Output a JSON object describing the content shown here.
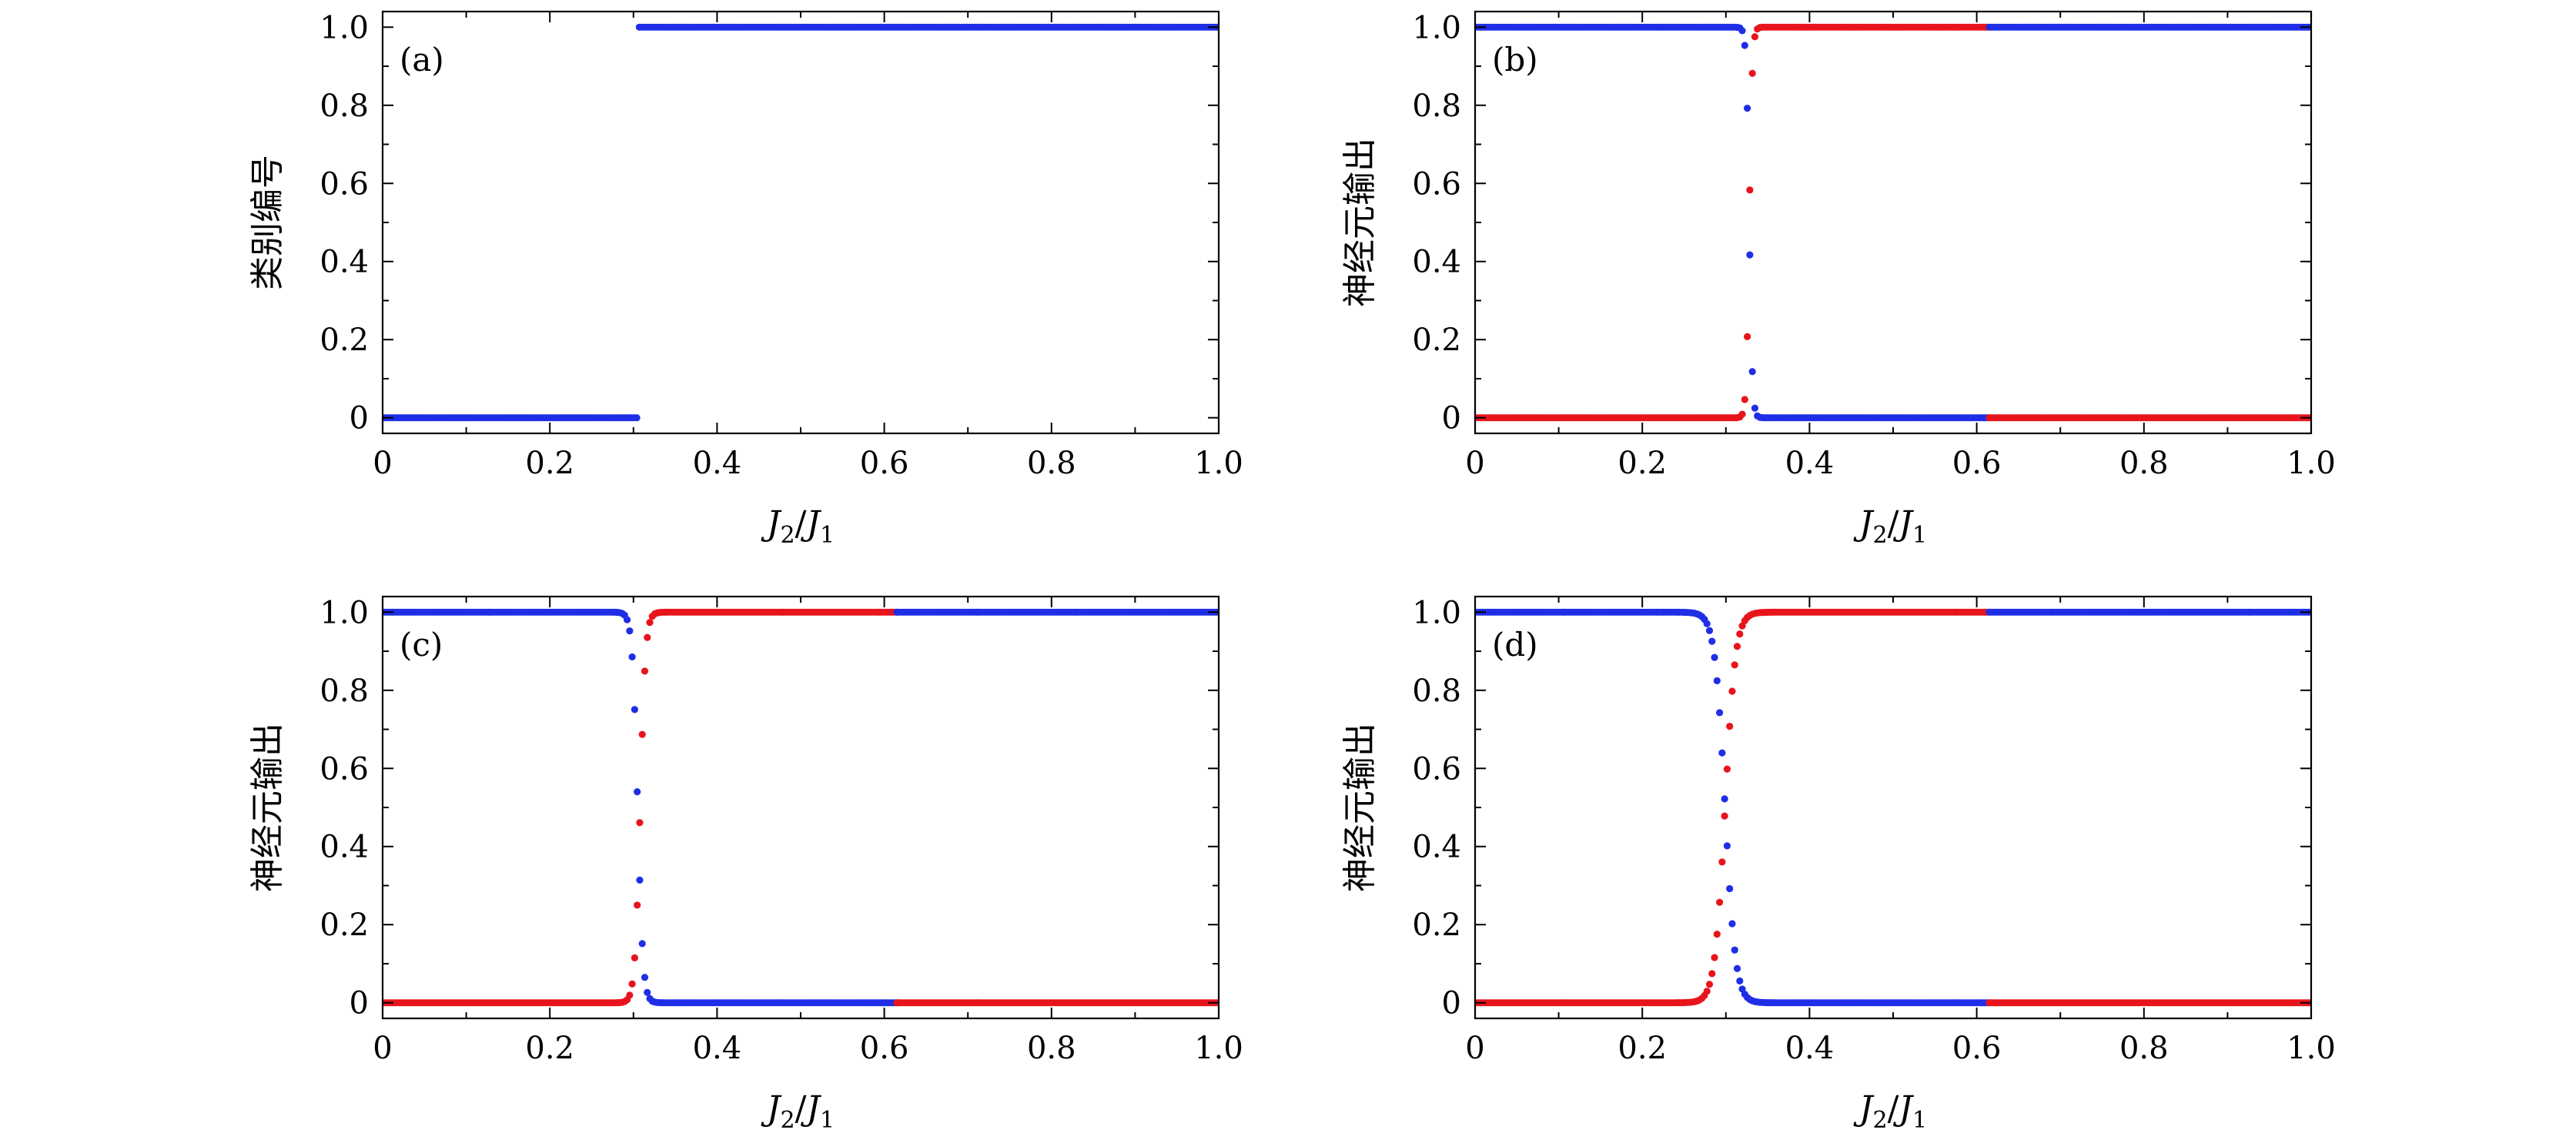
{
  "chart_data": [
    {
      "panel_label": "(a)",
      "type": "scatter",
      "xlabel": {
        "main": "J",
        "sub": "2",
        "sep": "/",
        "main2": "J",
        "sub2": "1"
      },
      "ylabel": "类别编号",
      "xlim": [
        0,
        1.0
      ],
      "ylim": [
        -0.04,
        1.04
      ],
      "xticks": [
        0,
        0.2,
        0.4,
        0.6,
        0.8,
        1.0
      ],
      "xtick_labels": [
        "0",
        "0.2",
        "0.4",
        "0.6",
        "0.8",
        "1.0"
      ],
      "yticks": [
        0,
        0.2,
        0.4,
        0.6,
        0.8,
        1.0
      ],
      "ytick_labels": [
        "0",
        "0.2",
        "0.4",
        "0.6",
        "0.8",
        "1.0"
      ],
      "series": [
        {
          "color": "#1f2ee6",
          "model": "step",
          "params": {
            "start": 0.0,
            "end": 1.0,
            "n": 330,
            "xc": 0.305,
            "low": 0,
            "high": 1
          }
        }
      ]
    },
    {
      "panel_label": "(b)",
      "type": "scatter",
      "xlabel": {
        "main": "J",
        "sub": "2",
        "sep": "/",
        "main2": "J",
        "sub2": "1"
      },
      "ylabel": "神经元输出",
      "xlim": [
        0,
        1.0
      ],
      "ylim": [
        -0.04,
        1.04
      ],
      "xticks": [
        0,
        0.2,
        0.4,
        0.6,
        0.8,
        1.0
      ],
      "xtick_labels": [
        "0",
        "0.2",
        "0.4",
        "0.6",
        "0.8",
        "1.0"
      ],
      "yticks": [
        0,
        0.2,
        0.4,
        0.6,
        0.8,
        1.0
      ],
      "ytick_labels": [
        "0",
        "0.2",
        "0.4",
        "0.6",
        "0.8",
        "1.0"
      ],
      "series": [
        {
          "color": "#1f2ee6",
          "model": "sigmoid",
          "params": {
            "start": 0.0,
            "end": 0.615,
            "n": 205,
            "x0": 0.328,
            "w": 0.0018,
            "dir": "down"
          }
        },
        {
          "color": "#e8141c",
          "model": "sigmoid",
          "params": {
            "start": 0.0,
            "end": 0.615,
            "n": 205,
            "x0": 0.328,
            "w": 0.0018,
            "dir": "up"
          }
        },
        {
          "color": "#1f2ee6",
          "model": "const",
          "params": {
            "start": 0.615,
            "end": 1.0,
            "n": 130,
            "y": 1
          }
        },
        {
          "color": "#e8141c",
          "model": "const",
          "params": {
            "start": 0.615,
            "end": 1.0,
            "n": 130,
            "y": 0
          }
        }
      ]
    },
    {
      "panel_label": "(c)",
      "type": "scatter",
      "xlabel": {
        "main": "J",
        "sub": "2",
        "sep": "/",
        "main2": "J",
        "sub2": "1"
      },
      "ylabel": "神经元输出",
      "xlim": [
        0,
        1.0
      ],
      "ylim": [
        -0.04,
        1.04
      ],
      "xticks": [
        0,
        0.2,
        0.4,
        0.6,
        0.8,
        1.0
      ],
      "xtick_labels": [
        "0",
        "0.2",
        "0.4",
        "0.6",
        "0.8",
        "1.0"
      ],
      "yticks": [
        0,
        0.2,
        0.4,
        0.6,
        0.8,
        1.0
      ],
      "ytick_labels": [
        "0",
        "0.2",
        "0.4",
        "0.6",
        "0.8",
        "1.0"
      ],
      "series": [
        {
          "color": "#1f2ee6",
          "model": "sigmoid",
          "params": {
            "start": 0.0,
            "end": 0.615,
            "n": 205,
            "x0": 0.305,
            "w": 0.0032,
            "dir": "down"
          }
        },
        {
          "color": "#e8141c",
          "model": "sigmoid",
          "params": {
            "start": 0.0,
            "end": 0.615,
            "n": 205,
            "x0": 0.308,
            "w": 0.0032,
            "dir": "up"
          }
        },
        {
          "color": "#e8141c",
          "model": "const",
          "params": {
            "start": 0.615,
            "end": 1.0,
            "n": 130,
            "y": 0
          }
        },
        {
          "color": "#1f2ee6",
          "model": "const",
          "params": {
            "start": 0.615,
            "end": 1.0,
            "n": 130,
            "y": 1
          }
        }
      ]
    },
    {
      "panel_label": "(d)",
      "type": "scatter",
      "xlabel": {
        "main": "J",
        "sub": "2",
        "sep": "/",
        "main2": "J",
        "sub2": "1"
      },
      "ylabel": "神经元输出",
      "xlim": [
        0,
        1.0
      ],
      "ylim": [
        -0.04,
        1.04
      ],
      "xticks": [
        0,
        0.2,
        0.4,
        0.6,
        0.8,
        1.0
      ],
      "xtick_labels": [
        "0",
        "0.2",
        "0.4",
        "0.6",
        "0.8",
        "1.0"
      ],
      "yticks": [
        0,
        0.2,
        0.4,
        0.6,
        0.8,
        1.0
      ],
      "ytick_labels": [
        "0",
        "0.2",
        "0.4",
        "0.6",
        "0.8",
        "1.0"
      ],
      "series": [
        {
          "color": "#1f2ee6",
          "model": "sigmoid",
          "params": {
            "start": 0.0,
            "end": 0.615,
            "n": 205,
            "x0": 0.299,
            "w": 0.0062,
            "dir": "down"
          }
        },
        {
          "color": "#e8141c",
          "model": "sigmoid",
          "params": {
            "start": 0.0,
            "end": 0.615,
            "n": 205,
            "x0": 0.299,
            "w": 0.0062,
            "dir": "up"
          }
        },
        {
          "color": "#1f2ee6",
          "model": "const",
          "params": {
            "start": 0.615,
            "end": 1.0,
            "n": 130,
            "y": 1
          }
        },
        {
          "color": "#e8141c",
          "model": "const",
          "params": {
            "start": 0.615,
            "end": 1.0,
            "n": 130,
            "y": 0
          }
        }
      ]
    }
  ]
}
